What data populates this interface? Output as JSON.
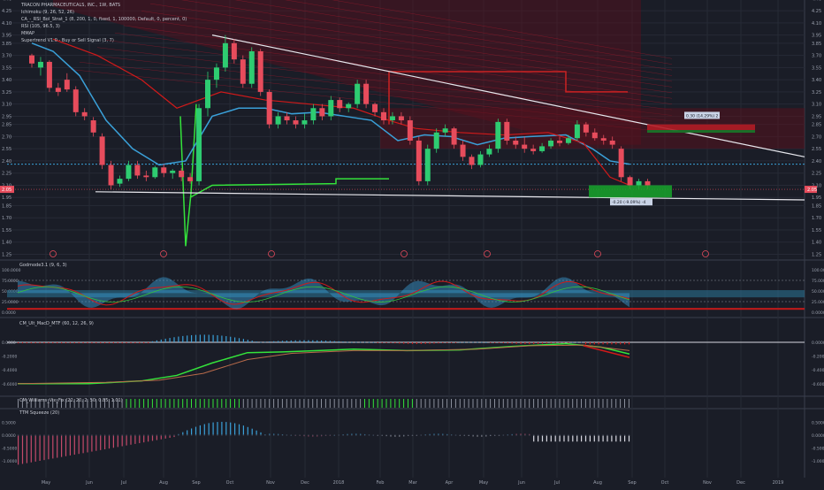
{
  "chart_data": [
    {
      "type": "candlestick",
      "symbol": "TRACON PHARMACEUTICALS, INC., 1W, BATS",
      "indicators": [
        "Ichimoku (9, 26, 52, 26)",
        "CA_-_RSI_Bol_Strat_1 (8, 200, 1, 0, fixed, 1, 100000, Default, 0, percent, 0)",
        "RSI (105, 96.5, 3)",
        "MMAP",
        "Supertrend V1.0 - Buy or Sell Signal (3, 7)"
      ],
      "x_tick_labels": [
        "May",
        "Jun",
        "Jul",
        "Aug",
        "Sep",
        "Oct",
        "Nov",
        "Dec",
        "2018",
        "Feb",
        "Mar",
        "Apr",
        "May",
        "Jun",
        "Jul",
        "Aug",
        "Sep",
        "Oct",
        "Nov",
        "Dec",
        "2019"
      ],
      "y_tick_labels": [
        "1.25",
        "1.40",
        "1.55",
        "1.70",
        "1.85",
        "1.95",
        "2.10",
        "2.25",
        "2.40",
        "2.55",
        "2.70",
        "2.85",
        "2.95",
        "3.10",
        "3.25",
        "3.40",
        "3.55",
        "3.70",
        "3.85",
        "3.95",
        "4.10",
        "4.25",
        "4.40"
      ],
      "ylim": [
        1.25,
        4.4
      ],
      "last_price_label": "2.05",
      "blue_line_level": 2.36,
      "candles": [
        {
          "o": 3.7,
          "h": 3.72,
          "l": 3.55,
          "c": 3.6
        },
        {
          "o": 3.55,
          "h": 3.68,
          "l": 3.45,
          "c": 3.62
        },
        {
          "o": 3.62,
          "h": 3.64,
          "l": 3.25,
          "c": 3.3
        },
        {
          "o": 3.3,
          "h": 3.36,
          "l": 3.2,
          "c": 3.25
        },
        {
          "o": 3.4,
          "h": 3.48,
          "l": 3.25,
          "c": 3.28
        },
        {
          "o": 3.28,
          "h": 3.32,
          "l": 2.95,
          "c": 3.0
        },
        {
          "o": 3.0,
          "h": 3.05,
          "l": 2.9,
          "c": 2.95
        },
        {
          "o": 2.9,
          "h": 2.94,
          "l": 2.7,
          "c": 2.75
        },
        {
          "o": 2.7,
          "h": 2.74,
          "l": 2.3,
          "c": 2.35
        },
        {
          "o": 2.35,
          "h": 2.4,
          "l": 2.05,
          "c": 2.1
        },
        {
          "o": 2.12,
          "h": 2.22,
          "l": 2.08,
          "c": 2.18
        },
        {
          "o": 2.18,
          "h": 2.4,
          "l": 2.15,
          "c": 2.35
        },
        {
          "o": 2.35,
          "h": 2.4,
          "l": 2.18,
          "c": 2.22
        },
        {
          "o": 2.22,
          "h": 2.28,
          "l": 2.15,
          "c": 2.2
        },
        {
          "o": 2.2,
          "h": 2.34,
          "l": 2.18,
          "c": 2.32
        },
        {
          "o": 2.32,
          "h": 2.36,
          "l": 2.2,
          "c": 2.25
        },
        {
          "o": 2.25,
          "h": 2.3,
          "l": 2.18,
          "c": 2.28
        },
        {
          "o": 2.28,
          "h": 2.31,
          "l": 2.15,
          "c": 2.2
        },
        {
          "o": 2.2,
          "h": 2.25,
          "l": 2.12,
          "c": 2.15
        },
        {
          "o": 2.15,
          "h": 3.1,
          "l": 2.1,
          "c": 3.05
        },
        {
          "o": 3.05,
          "h": 3.5,
          "l": 2.95,
          "c": 3.4
        },
        {
          "o": 3.4,
          "h": 3.6,
          "l": 3.3,
          "c": 3.55
        },
        {
          "o": 3.55,
          "h": 3.95,
          "l": 3.5,
          "c": 3.85
        },
        {
          "o": 3.85,
          "h": 3.9,
          "l": 3.6,
          "c": 3.65
        },
        {
          "o": 3.65,
          "h": 3.7,
          "l": 3.3,
          "c": 3.35
        },
        {
          "o": 3.35,
          "h": 3.8,
          "l": 3.3,
          "c": 3.75
        },
        {
          "o": 3.75,
          "h": 3.78,
          "l": 3.2,
          "c": 3.25
        },
        {
          "o": 3.25,
          "h": 3.28,
          "l": 2.8,
          "c": 2.85
        },
        {
          "o": 2.85,
          "h": 3.0,
          "l": 2.8,
          "c": 2.95
        },
        {
          "o": 2.95,
          "h": 3.0,
          "l": 2.85,
          "c": 2.9
        },
        {
          "o": 2.9,
          "h": 2.95,
          "l": 2.8,
          "c": 2.85
        },
        {
          "o": 2.85,
          "h": 2.98,
          "l": 2.8,
          "c": 2.9
        },
        {
          "o": 2.9,
          "h": 3.1,
          "l": 2.85,
          "c": 3.05
        },
        {
          "o": 3.05,
          "h": 3.1,
          "l": 2.9,
          "c": 2.95
        },
        {
          "o": 2.95,
          "h": 3.2,
          "l": 2.9,
          "c": 3.15
        },
        {
          "o": 3.15,
          "h": 3.18,
          "l": 3.0,
          "c": 3.05
        },
        {
          "o": 3.05,
          "h": 3.12,
          "l": 3.0,
          "c": 3.1
        },
        {
          "o": 3.1,
          "h": 3.4,
          "l": 3.05,
          "c": 3.35
        },
        {
          "o": 3.35,
          "h": 3.4,
          "l": 3.05,
          "c": 3.1
        },
        {
          "o": 3.1,
          "h": 3.12,
          "l": 2.95,
          "c": 3.0
        },
        {
          "o": 3.0,
          "h": 3.05,
          "l": 2.85,
          "c": 2.9
        },
        {
          "o": 2.9,
          "h": 3.0,
          "l": 2.85,
          "c": 2.95
        },
        {
          "o": 2.95,
          "h": 3.0,
          "l": 2.85,
          "c": 2.9
        },
        {
          "o": 2.9,
          "h": 2.95,
          "l": 2.6,
          "c": 2.65
        },
        {
          "o": 2.65,
          "h": 2.7,
          "l": 2.1,
          "c": 2.15
        },
        {
          "o": 2.15,
          "h": 2.6,
          "l": 2.1,
          "c": 2.55
        },
        {
          "o": 2.55,
          "h": 2.8,
          "l": 2.5,
          "c": 2.75
        },
        {
          "o": 2.75,
          "h": 2.85,
          "l": 2.7,
          "c": 2.8
        },
        {
          "o": 2.8,
          "h": 2.82,
          "l": 2.55,
          "c": 2.6
        },
        {
          "o": 2.6,
          "h": 2.65,
          "l": 2.4,
          "c": 2.45
        },
        {
          "o": 2.45,
          "h": 2.48,
          "l": 2.3,
          "c": 2.35
        },
        {
          "o": 2.35,
          "h": 2.52,
          "l": 2.32,
          "c": 2.48
        },
        {
          "o": 2.48,
          "h": 2.6,
          "l": 2.45,
          "c": 2.55
        },
        {
          "o": 2.55,
          "h": 2.92,
          "l": 2.5,
          "c": 2.88
        },
        {
          "o": 2.88,
          "h": 2.92,
          "l": 2.6,
          "c": 2.65
        },
        {
          "o": 2.65,
          "h": 2.7,
          "l": 2.55,
          "c": 2.6
        },
        {
          "o": 2.6,
          "h": 2.7,
          "l": 2.5,
          "c": 2.55
        },
        {
          "o": 2.55,
          "h": 2.6,
          "l": 2.48,
          "c": 2.52
        },
        {
          "o": 2.52,
          "h": 2.62,
          "l": 2.5,
          "c": 2.58
        },
        {
          "o": 2.58,
          "h": 2.68,
          "l": 2.55,
          "c": 2.65
        },
        {
          "o": 2.65,
          "h": 2.7,
          "l": 2.58,
          "c": 2.62
        },
        {
          "o": 2.62,
          "h": 2.72,
          "l": 2.6,
          "c": 2.68
        },
        {
          "o": 2.68,
          "h": 2.9,
          "l": 2.65,
          "c": 2.85
        },
        {
          "o": 2.85,
          "h": 2.88,
          "l": 2.7,
          "c": 2.75
        },
        {
          "o": 2.75,
          "h": 2.8,
          "l": 2.65,
          "c": 2.68
        },
        {
          "o": 2.68,
          "h": 2.72,
          "l": 2.6,
          "c": 2.65
        },
        {
          "o": 2.65,
          "h": 2.7,
          "l": 2.55,
          "c": 2.6
        },
        {
          "o": 2.55,
          "h": 2.58,
          "l": 2.15,
          "c": 2.2
        },
        {
          "o": 2.2,
          "h": 2.22,
          "l": 2.05,
          "c": 2.1
        },
        {
          "o": 2.1,
          "h": 2.18,
          "l": 2.05,
          "c": 2.15
        },
        {
          "o": 2.15,
          "h": 2.18,
          "l": 2.05,
          "c": 2.1
        }
      ],
      "annotations": [
        {
          "text": "0.30 (14.29%) 2"
        },
        {
          "text": "-0.20 (-9.09%) -4"
        }
      ]
    },
    {
      "type": "line",
      "title": "Godmode3.1 (9, 6, 3)",
      "y_tick_labels": [
        "100.0000",
        "75.0000",
        "50.0000",
        "25.0000",
        "0.0000"
      ],
      "ylim": [
        0,
        100
      ]
    },
    {
      "type": "histogram",
      "title": "CM_Ult_MacD_MTF (60, 12, 26, 9)",
      "y_tick_labels": [
        "0.0000",
        "-0.2000",
        "-0.4000",
        "-0.6000"
      ],
      "ylim": [
        -0.6,
        0.05
      ]
    },
    {
      "type": "histogram",
      "title": "CM_Williams_Vix_Fix (22, 20, 2, 50, 0.85, 1.01)",
      "y_tick_labels": []
    },
    {
      "type": "histogram",
      "title": "TTM Squeeze (20)",
      "y_tick_labels": [
        "0.5000",
        "0.0000",
        "-0.5000",
        "-1.0000"
      ],
      "ylim": [
        -1.1,
        0.6
      ]
    }
  ],
  "colors": {
    "up": "#2ecc71",
    "down": "#e74c5c",
    "blue": "#3aa0d8",
    "green": "#34e33b",
    "red": "#cc2222",
    "bg": "#1a1d27"
  },
  "legend": {
    "title": "TRACON PHARMACEUTICALS, INC., 1W, BATS",
    "ind1": "Ichimoku (9, 26, 52, 26)",
    "ind2": "CA_-_RSI_Bol_Strat_1 (8, 200, 1, 0, fixed, 1, 100000, Default, 0, percent, 0)",
    "ind3": "RSI (105, 96.5, 3)",
    "ind4": "MMAP",
    "ind5": "Supertrend V1.0 - Buy or Sell Signal (3, 7)"
  }
}
